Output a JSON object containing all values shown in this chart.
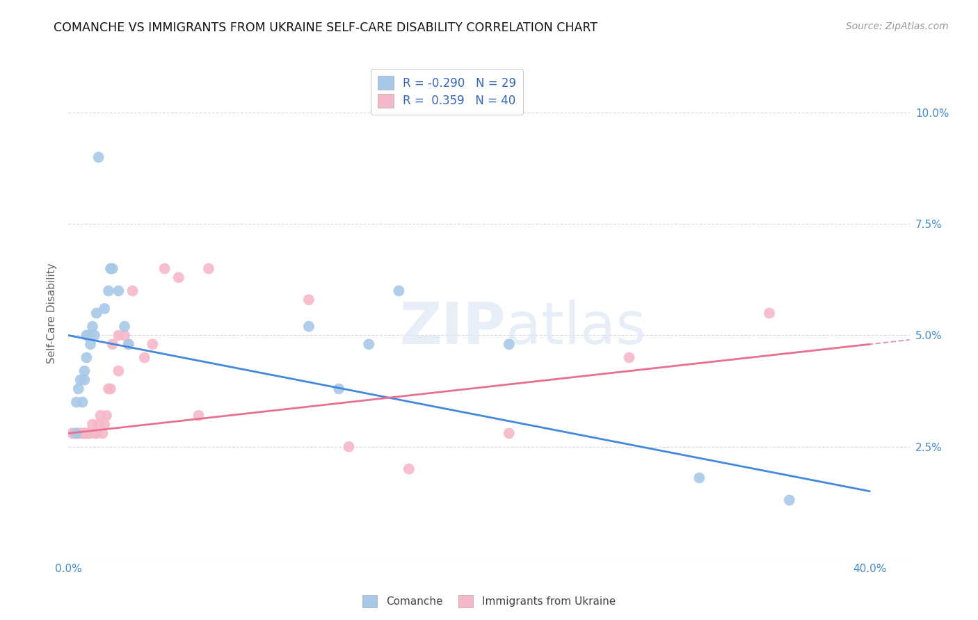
{
  "title": "COMANCHE VS IMMIGRANTS FROM UKRAINE SELF-CARE DISABILITY CORRELATION CHART",
  "source": "Source: ZipAtlas.com",
  "ylabel": "Self-Care Disability",
  "xlim": [
    0.0,
    0.42
  ],
  "ylim": [
    0.0,
    0.11
  ],
  "xticks": [
    0.0,
    0.05,
    0.1,
    0.15,
    0.2,
    0.25,
    0.3,
    0.35,
    0.4
  ],
  "xticklabels": [
    "0.0%",
    "",
    "",
    "",
    "",
    "",
    "",
    "",
    "40.0%"
  ],
  "yticks": [
    0.0,
    0.025,
    0.05,
    0.075,
    0.1
  ],
  "yticklabels": [
    "",
    "2.5%",
    "5.0%",
    "7.5%",
    "10.0%"
  ],
  "comanche_color": "#a8c8e8",
  "ukraine_color": "#f5b8c8",
  "comanche_line_color": "#4488dd",
  "ukraine_line_color": "#e87090",
  "trendline_dash_color": "#d8a0b8",
  "R_comanche": -0.29,
  "N_comanche": 29,
  "R_ukraine": 0.359,
  "N_ukraine": 40,
  "comanche_x": [
    0.004,
    0.004,
    0.005,
    0.006,
    0.007,
    0.008,
    0.008,
    0.009,
    0.009,
    0.01,
    0.011,
    0.012,
    0.013,
    0.014,
    0.015,
    0.018,
    0.02,
    0.021,
    0.022,
    0.025,
    0.028,
    0.03,
    0.12,
    0.135,
    0.15,
    0.165,
    0.22,
    0.315,
    0.36
  ],
  "comanche_y": [
    0.028,
    0.035,
    0.038,
    0.04,
    0.035,
    0.04,
    0.042,
    0.045,
    0.05,
    0.05,
    0.048,
    0.052,
    0.05,
    0.055,
    0.09,
    0.056,
    0.06,
    0.065,
    0.065,
    0.06,
    0.052,
    0.048,
    0.052,
    0.038,
    0.048,
    0.06,
    0.048,
    0.018,
    0.013
  ],
  "ukraine_x": [
    0.002,
    0.003,
    0.004,
    0.005,
    0.006,
    0.007,
    0.008,
    0.008,
    0.009,
    0.01,
    0.01,
    0.011,
    0.012,
    0.013,
    0.014,
    0.015,
    0.016,
    0.017,
    0.018,
    0.019,
    0.02,
    0.021,
    0.022,
    0.025,
    0.025,
    0.028,
    0.03,
    0.032,
    0.038,
    0.042,
    0.048,
    0.055,
    0.065,
    0.07,
    0.12,
    0.14,
    0.17,
    0.22,
    0.28,
    0.35
  ],
  "ukraine_y": [
    0.028,
    0.028,
    0.028,
    0.028,
    0.028,
    0.028,
    0.028,
    0.028,
    0.028,
    0.028,
    0.028,
    0.028,
    0.03,
    0.028,
    0.028,
    0.03,
    0.032,
    0.028,
    0.03,
    0.032,
    0.038,
    0.038,
    0.048,
    0.042,
    0.05,
    0.05,
    0.048,
    0.06,
    0.045,
    0.048,
    0.065,
    0.063,
    0.032,
    0.065,
    0.058,
    0.025,
    0.02,
    0.028,
    0.045,
    0.055
  ],
  "watermark_zip": "ZIP",
  "watermark_atlas": "atlas",
  "background_color": "#ffffff",
  "grid_color": "#d8d8e8"
}
